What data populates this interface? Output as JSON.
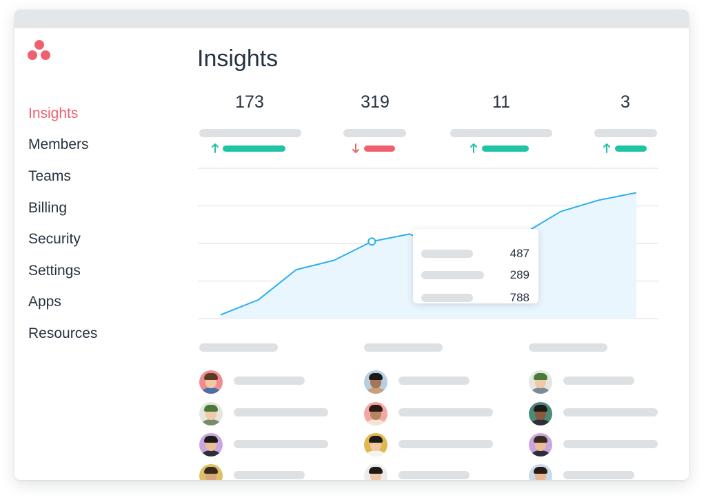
{
  "page": {
    "title": "Insights"
  },
  "colors": {
    "brand": "#f0616f",
    "accent_line": "#2aaef0",
    "up": "#1fc4a3",
    "down": "#f0616f",
    "placeholder": "#dde1e4",
    "text": "#273240"
  },
  "sidebar": {
    "items": [
      {
        "label": "Insights",
        "active": true
      },
      {
        "label": "Members"
      },
      {
        "label": "Teams"
      },
      {
        "label": "Billing"
      },
      {
        "label": "Security"
      },
      {
        "label": "Settings"
      },
      {
        "label": "Apps"
      },
      {
        "label": "Resources"
      }
    ]
  },
  "stats": [
    {
      "value": "173",
      "trend": "up"
    },
    {
      "value": "319",
      "trend": "down"
    },
    {
      "value": "11",
      "trend": "up"
    },
    {
      "value": "3",
      "trend": "up"
    }
  ],
  "tooltip": {
    "values": [
      "487",
      "289",
      "788"
    ]
  },
  "chart_data": {
    "type": "area",
    "series": [
      {
        "values": [
          1,
          5,
          13,
          15.5,
          20.5,
          22.5,
          18,
          20,
          22.5,
          28.5,
          31.5,
          33.5
        ]
      }
    ],
    "highlight_index": 4,
    "ylim": [
      0,
      40
    ],
    "grid": true
  },
  "members": {
    "columns": [
      {
        "avatars": [
          "avatar-1",
          "avatar-2",
          "avatar-3",
          "avatar-4"
        ]
      },
      {
        "avatars": [
          "avatar-5",
          "avatar-6",
          "avatar-7",
          "avatar-8"
        ]
      },
      {
        "avatars": [
          "avatar-9",
          "avatar-10",
          "avatar-11",
          "avatar-12"
        ]
      }
    ]
  }
}
